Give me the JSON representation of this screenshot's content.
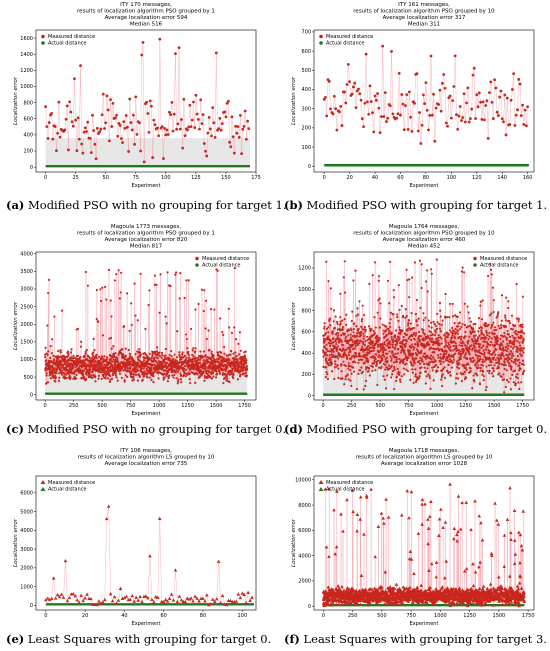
{
  "legend": {
    "measured": "Measured distance",
    "actual": "Actual distance"
  },
  "colors": {
    "measured": "#c8271d",
    "measured_line": "#f5a3ad",
    "actual": "#1f7a1f",
    "bar": "#b9b9b9"
  },
  "chart_data": [
    {
      "type": "scatter",
      "title": [
        "ITY 170 messages,",
        "results of localization algorithm PSO grouped by 1",
        "Average localization error 594",
        "Median 516"
      ],
      "xlabel": "Experiment",
      "ylabel": "Localization error",
      "xlim": [
        -8,
        175
      ],
      "ylim": [
        -60,
        1700
      ],
      "xticks": [
        0,
        25,
        50,
        75,
        100,
        125,
        150,
        175
      ],
      "yticks": [
        0,
        200,
        400,
        600,
        800,
        1000,
        1200,
        1400,
        1600
      ],
      "marker": "dot",
      "grid": false,
      "legend_position": "top-left",
      "n": 170,
      "typical": 500,
      "spread": 300,
      "max_value": 1620,
      "bar_level": 360,
      "caption": {
        "letter": "(a)",
        "text": " Modified PSO with no grouping for target 1."
      }
    },
    {
      "type": "scatter",
      "title": [
        "ITY 161 messages,",
        "results of localization algorithm PSO grouped by 10",
        "Average localization error 317",
        "Median 311"
      ],
      "xlabel": "Experiment",
      "ylabel": "Localization error",
      "xlim": [
        -8,
        165
      ],
      "ylim": [
        -30,
        710
      ],
      "xticks": [
        0,
        20,
        40,
        60,
        80,
        100,
        120,
        140,
        160
      ],
      "yticks": [
        0,
        100,
        200,
        300,
        400,
        500,
        600,
        700
      ],
      "marker": "dot",
      "grid": false,
      "legend_position": "top-left",
      "n": 161,
      "typical": 310,
      "spread": 130,
      "max_value": 680,
      "bar_level": 0,
      "caption": {
        "letter": "(b)",
        "text": " Modified PSO with grouping for target 1."
      }
    },
    {
      "type": "scatter",
      "title": [
        "Magoula 1773 messages,",
        "results of localization algorithm PSO grouped by 1",
        "Average localization error 820",
        "Median 817"
      ],
      "xlabel": "Experiment",
      "ylabel": "Localization error",
      "xlim": [
        -80,
        1850
      ],
      "ylim": [
        -150,
        4050
      ],
      "xticks": [
        0,
        250,
        500,
        750,
        1000,
        1250,
        1500,
        1750
      ],
      "yticks": [
        0,
        500,
        1000,
        1500,
        2000,
        2500,
        3000,
        3500,
        4000
      ],
      "marker": "dot",
      "grid": false,
      "legend_position": "top-right",
      "n": 1773,
      "typical": 820,
      "spread": 330,
      "max_value": 3600,
      "bar_level": 800,
      "caption": {
        "letter": "(c)",
        "text": " Modified PSO with no grouping for target 0."
      }
    },
    {
      "type": "scatter",
      "title": [
        "Magoula 1764 messages,",
        "results of localization algorithm PSO grouped by 10",
        "Average localization error 460",
        "Median 452"
      ],
      "xlabel": "Experiment",
      "ylabel": "Localization error",
      "xlim": [
        -80,
        1850
      ],
      "ylim": [
        -40,
        1350
      ],
      "xticks": [
        0,
        250,
        500,
        750,
        1000,
        1250,
        1500,
        1750
      ],
      "yticks": [
        0,
        200,
        400,
        600,
        800,
        1000,
        1200
      ],
      "marker": "dot",
      "grid": false,
      "legend_position": "top-right",
      "n": 1764,
      "typical": 450,
      "spread": 260,
      "max_value": 1290,
      "bar_level": 400,
      "caption": {
        "letter": "(d)",
        "text": " Modified PSO with grouping for target 0."
      }
    },
    {
      "type": "scatter",
      "title": [
        "ITY 106 messages,",
        "results of localization algorithm LS grouped by 10",
        "Average localization error 735"
      ],
      "xlabel": "Experiment",
      "ylabel": "Localization error",
      "xlim": [
        -5,
        107
      ],
      "ylim": [
        -250,
        6900
      ],
      "xticks": [
        0,
        20,
        40,
        60,
        80,
        100
      ],
      "yticks": [
        0,
        1000,
        2000,
        3000,
        4000,
        5000,
        6000
      ],
      "marker": "triangle",
      "grid": false,
      "legend_position": "top-left",
      "n": 106,
      "typical": 300,
      "spread": 250,
      "max_value": 6200,
      "bar_level": 0,
      "caption": {
        "letter": "(e)",
        "text": " Least Squares with grouping for target 0."
      }
    },
    {
      "type": "scatter",
      "title": [
        "Magoula 1718 messages,",
        "results of localization algorithm LS grouped by 10",
        "Average localization error 1028"
      ],
      "xlabel": "Experiment",
      "ylabel": "Localization error",
      "xlim": [
        -80,
        1800
      ],
      "ylim": [
        -300,
        10300
      ],
      "xticks": [
        0,
        250,
        500,
        750,
        1000,
        1250,
        1500,
        1750
      ],
      "yticks": [
        0,
        2000,
        4000,
        6000,
        8000,
        10000
      ],
      "marker": "triangle",
      "grid": false,
      "legend_position": "top-left",
      "n": 1718,
      "typical": 800,
      "spread": 500,
      "max_value": 9700,
      "bar_level": 0,
      "caption": {
        "letter": "(f)",
        "text": " Least Squares with grouping for target 3."
      }
    }
  ]
}
